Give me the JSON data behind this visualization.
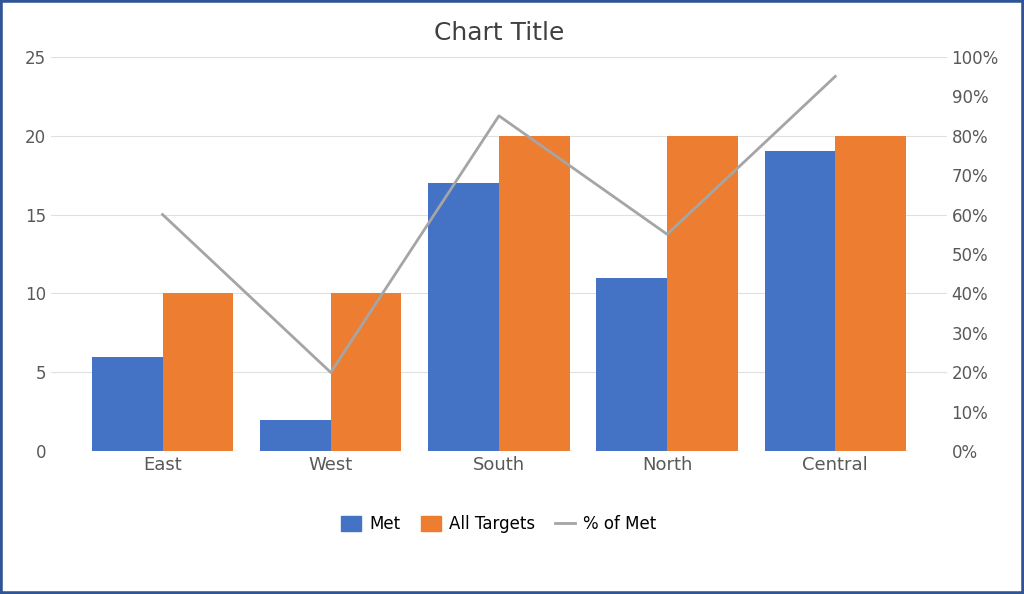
{
  "categories": [
    "East",
    "West",
    "South",
    "North",
    "Central"
  ],
  "met": [
    6,
    2,
    17,
    11,
    19
  ],
  "all_targets": [
    10,
    10,
    20,
    20,
    20
  ],
  "pct_of_met": [
    0.6,
    0.2,
    0.85,
    0.55,
    0.95
  ],
  "bar_color_met": "#4472C4",
  "bar_color_targets": "#ED7D31",
  "line_color": "#A5A5A5",
  "title": "Chart Title",
  "title_fontsize": 18,
  "left_ylim": [
    0,
    25
  ],
  "right_ylim": [
    0.0,
    1.0
  ],
  "left_yticks": [
    0,
    5,
    10,
    15,
    20,
    25
  ],
  "right_yticks": [
    0.0,
    0.1,
    0.2,
    0.3,
    0.4,
    0.5,
    0.6,
    0.7,
    0.8,
    0.9,
    1.0
  ],
  "legend_labels": [
    "Met",
    "All Targets",
    "% of Met"
  ],
  "background_color": "#FFFFFF",
  "border_color": "#2F5597",
  "border_linewidth": 4.0,
  "tick_fontsize": 12,
  "legend_fontsize": 12,
  "bar_width": 0.42
}
